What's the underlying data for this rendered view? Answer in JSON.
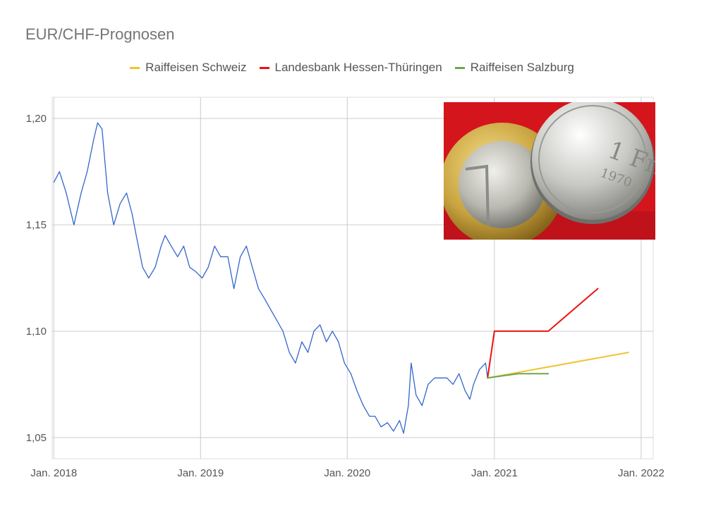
{
  "chart_data": {
    "type": "line",
    "title": "EUR/CHF-Prognosen",
    "xlabel": "",
    "ylabel": "",
    "x_ticks": [
      "Jan. 2018",
      "Jan. 2019",
      "Jan. 2020",
      "Jan. 2021",
      "Jan. 2022"
    ],
    "y_ticks": [
      "1,05",
      "1,10",
      "1,15",
      "1,20"
    ],
    "ylim": [
      1.04,
      1.21
    ],
    "xlim": [
      "2017-12-28",
      "2022-01-31"
    ],
    "grid": true,
    "legend_position": "top-center",
    "history": {
      "color": "#3366cc",
      "points": [
        [
          "2018-01-01",
          1.17
        ],
        [
          "2018-01-15",
          1.175
        ],
        [
          "2018-02-01",
          1.165
        ],
        [
          "2018-02-20",
          1.15
        ],
        [
          "2018-03-10",
          1.165
        ],
        [
          "2018-03-25",
          1.175
        ],
        [
          "2018-04-10",
          1.19
        ],
        [
          "2018-04-20",
          1.198
        ],
        [
          "2018-05-01",
          1.195
        ],
        [
          "2018-05-15",
          1.165
        ],
        [
          "2018-05-30",
          1.15
        ],
        [
          "2018-06-15",
          1.16
        ],
        [
          "2018-07-01",
          1.165
        ],
        [
          "2018-07-15",
          1.155
        ],
        [
          "2018-07-25",
          1.145
        ],
        [
          "2018-08-10",
          1.13
        ],
        [
          "2018-08-25",
          1.125
        ],
        [
          "2018-09-10",
          1.13
        ],
        [
          "2018-09-25",
          1.14
        ],
        [
          "2018-10-05",
          1.145
        ],
        [
          "2018-10-20",
          1.14
        ],
        [
          "2018-11-05",
          1.135
        ],
        [
          "2018-11-20",
          1.14
        ],
        [
          "2018-12-05",
          1.13
        ],
        [
          "2018-12-20",
          1.128
        ],
        [
          "2019-01-05",
          1.125
        ],
        [
          "2019-01-20",
          1.13
        ],
        [
          "2019-02-05",
          1.14
        ],
        [
          "2019-02-20",
          1.135
        ],
        [
          "2019-03-10",
          1.135
        ],
        [
          "2019-03-25",
          1.12
        ],
        [
          "2019-04-10",
          1.135
        ],
        [
          "2019-04-25",
          1.14
        ],
        [
          "2019-05-10",
          1.13
        ],
        [
          "2019-05-25",
          1.12
        ],
        [
          "2019-06-10",
          1.115
        ],
        [
          "2019-06-25",
          1.11
        ],
        [
          "2019-07-10",
          1.105
        ],
        [
          "2019-07-25",
          1.1
        ],
        [
          "2019-08-10",
          1.09
        ],
        [
          "2019-08-25",
          1.085
        ],
        [
          "2019-09-10",
          1.095
        ],
        [
          "2019-09-25",
          1.09
        ],
        [
          "2019-10-10",
          1.1
        ],
        [
          "2019-10-25",
          1.103
        ],
        [
          "2019-11-10",
          1.095
        ],
        [
          "2019-11-25",
          1.1
        ],
        [
          "2019-12-10",
          1.095
        ],
        [
          "2019-12-25",
          1.085
        ],
        [
          "2020-01-10",
          1.08
        ],
        [
          "2020-01-25",
          1.072
        ],
        [
          "2020-02-10",
          1.065
        ],
        [
          "2020-02-25",
          1.06
        ],
        [
          "2020-03-10",
          1.06
        ],
        [
          "2020-03-25",
          1.055
        ],
        [
          "2020-04-10",
          1.057
        ],
        [
          "2020-04-25",
          1.053
        ],
        [
          "2020-05-10",
          1.058
        ],
        [
          "2020-05-20",
          1.052
        ],
        [
          "2020-06-01",
          1.065
        ],
        [
          "2020-06-08",
          1.085
        ],
        [
          "2020-06-20",
          1.07
        ],
        [
          "2020-07-05",
          1.065
        ],
        [
          "2020-07-20",
          1.075
        ],
        [
          "2020-08-05",
          1.078
        ],
        [
          "2020-08-20",
          1.078
        ],
        [
          "2020-09-05",
          1.078
        ],
        [
          "2020-09-20",
          1.075
        ],
        [
          "2020-10-05",
          1.08
        ],
        [
          "2020-10-20",
          1.072
        ],
        [
          "2020-11-01",
          1.068
        ],
        [
          "2020-11-10",
          1.075
        ],
        [
          "2020-11-25",
          1.082
        ],
        [
          "2020-12-10",
          1.085
        ],
        [
          "2020-12-15",
          1.078
        ]
      ]
    },
    "series": [
      {
        "name": "Raiffeisen Schweiz",
        "color": "#f1c232",
        "points": [
          [
            "2020-12-15",
            1.078
          ],
          [
            "2021-11-30",
            1.09
          ]
        ]
      },
      {
        "name": "Landesbank Hessen-Thüringen",
        "color": "#ee1111",
        "points": [
          [
            "2020-12-15",
            1.078
          ],
          [
            "2021-01-01",
            1.1
          ],
          [
            "2021-05-15",
            1.1
          ],
          [
            "2021-09-15",
            1.12
          ]
        ]
      },
      {
        "name": "Raiffeisen Salzburg",
        "color": "#6aa84f",
        "points": [
          [
            "2020-12-15",
            1.078
          ],
          [
            "2021-03-01",
            1.08
          ],
          [
            "2021-05-15",
            1.08
          ]
        ]
      }
    ]
  }
}
